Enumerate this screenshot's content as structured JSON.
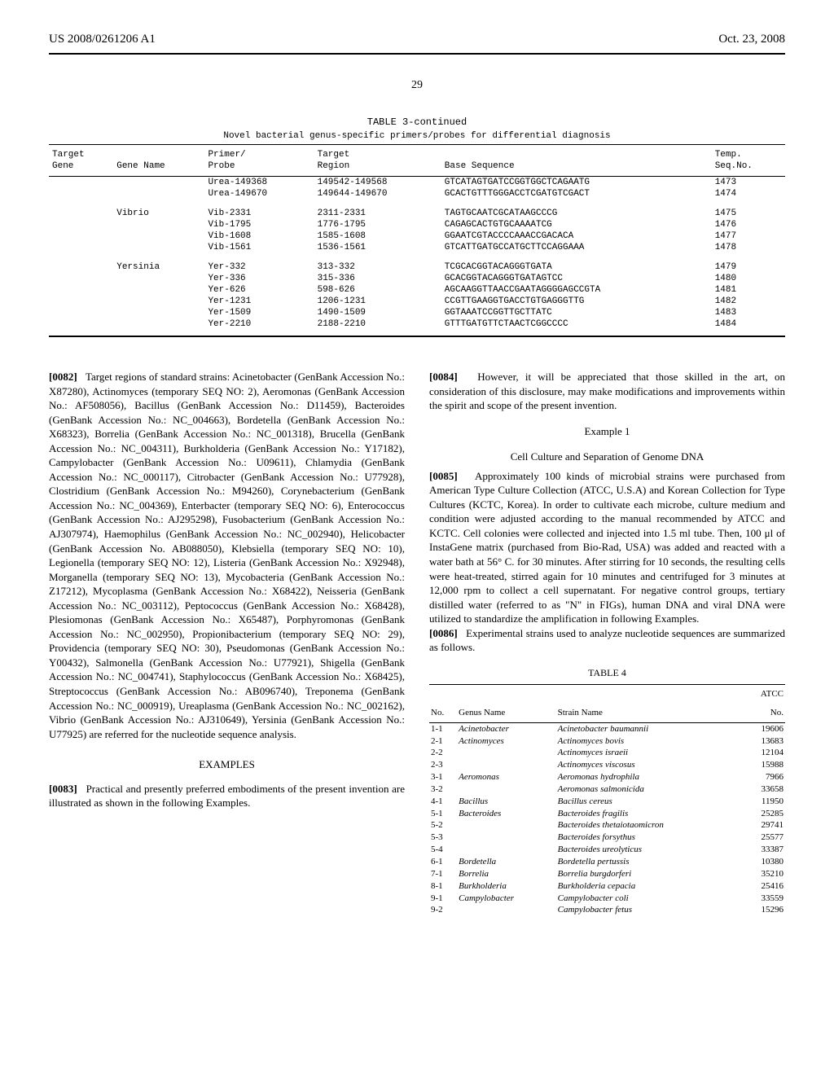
{
  "header": {
    "left": "US 2008/0261206 A1",
    "right": "Oct. 23, 2008"
  },
  "page_number": "29",
  "table3": {
    "continued": "TABLE 3-continued",
    "subtitle": "Novel bacterial genus-specific primers/probes for differential diagnosis",
    "columns": {
      "c1a": "Target",
      "c1b": "Gene",
      "c2a": "",
      "c2b": "Gene Name",
      "c3a": "Primer/",
      "c3b": "Probe",
      "c4a": "Target",
      "c4b": "Region",
      "c5a": "",
      "c5b": "Base Sequence",
      "c6a": "Temp.",
      "c6b": "Seq.No."
    },
    "rows": [
      {
        "gene": "",
        "name": "",
        "primer": "Urea-149368",
        "region": "149542-149568",
        "seq": "GTCATAGTGATCCGGTGGCTCAGAATG",
        "no": "1473"
      },
      {
        "gene": "",
        "name": "",
        "primer": "Urea-149670",
        "region": "149644-149670",
        "seq": "GCACTGTTTGGGACCTCGATGTCGACT",
        "no": "1474"
      },
      {
        "gene": "",
        "name": "Vibrio",
        "primer": "Vib-2331",
        "region": "2311-2331",
        "seq": "TAGTGCAATCGCATAAGCCCG",
        "no": "1475",
        "spacer": true
      },
      {
        "gene": "",
        "name": "",
        "primer": "Vib-1795",
        "region": "1776-1795",
        "seq": "CAGAGCACTGTGCAAAATCG",
        "no": "1476"
      },
      {
        "gene": "",
        "name": "",
        "primer": "Vib-1608",
        "region": "1585-1608",
        "seq": "GGAATCGTACCCCAAACCGACACA",
        "no": "1477"
      },
      {
        "gene": "",
        "name": "",
        "primer": "Vib-1561",
        "region": "1536-1561",
        "seq": "GTCATTGATGCCATGCTTCCAGGAAA",
        "no": "1478"
      },
      {
        "gene": "",
        "name": "Yersinia",
        "primer": "Yer-332",
        "region": "313-332",
        "seq": "TCGCACGGTACAGGGTGATA",
        "no": "1479",
        "spacer": true
      },
      {
        "gene": "",
        "name": "",
        "primer": "Yer-336",
        "region": "315-336",
        "seq": "GCACGGTACAGGGTGATAGTCC",
        "no": "1480"
      },
      {
        "gene": "",
        "name": "",
        "primer": "Yer-626",
        "region": "598-626",
        "seq": "AGCAAGGTTAACCGAATAGGGGAGCCGTA",
        "no": "1481"
      },
      {
        "gene": "",
        "name": "",
        "primer": "Yer-1231",
        "region": "1206-1231",
        "seq": "CCGTTGAAGGTGACCTGTGAGGGTTG",
        "no": "1482"
      },
      {
        "gene": "",
        "name": "",
        "primer": "Yer-1509",
        "region": "1490-1509",
        "seq": "GGTAAATCCGGTTGCTTATC",
        "no": "1483"
      },
      {
        "gene": "",
        "name": "",
        "primer": "Yer-2210",
        "region": "2188-2210",
        "seq": "GTTTGATGTTCTAACTCGGCCCC",
        "no": "1484",
        "last": true
      }
    ]
  },
  "left_column": {
    "p0082_num": "[0082]",
    "p0082": "Target regions of standard strains: Acinetobacter (GenBank Accession No.: X87280), Actinomyces (temporary SEQ NO: 2), Aeromonas (GenBank Accession No.: AF508056), Bacillus (GenBank Accession No.: D11459), Bacteroides (GenBank Accession No.: NC_004663), Bordetella (GenBank Accession No.: X68323), Borrelia (GenBank Accession No.: NC_001318), Brucella (GenBank Accession No.: NC_004311), Burkholderia (GenBank Accession No.: Y17182), Campylobacter (GenBank Accession No.: U09611), Chlamydia (GenBank Accession No.: NC_000117), Citrobacter (GenBank Accession No.: U77928), Clostridium (GenBank Accession No.: M94260), Corynebacterium (GenBank Accession No.: NC_004369), Enterbacter (temporary SEQ NO: 6), Enterococcus (GenBank Accession No.: AJ295298), Fusobacterium (GenBank Accession No.: AJ307974), Haemophilus (GenBank Accession No.: NC_002940), Helicobacter (GenBank Accession No. AB088050), Klebsiella (temporary SEQ NO: 10), Legionella (temporary SEQ NO: 12), Listeria (GenBank Accession No.: X92948), Morganella (temporary SEQ NO: 13), Mycobacteria (GenBank Accession No.: Z17212), Mycoplasma (GenBank Accession No.: X68422), Neisseria (GenBank Accession No.: NC_003112), Peptococcus (GenBank Accession No.: X68428), Plesiomonas (GenBank Accession No.: X65487), Porphyromonas (GenBank Accession No.: NC_002950), Propionibacterium (temporary SEQ NO: 29), Providencia (temporary SEQ NO: 30), Pseudomonas (GenBank Accession No.: Y00432), Salmonella (GenBank Accession No.: U77921), Shigella (GenBank Accession No.: NC_004741), Staphylococcus (GenBank Accession No.: X68425), Streptococcus (GenBank Accession No.: AB096740), Treponema (GenBank Accession No.: NC_000919), Ureaplasma (GenBank Accession No.: NC_002162), Vibrio (GenBank Accession No.: AJ310649), Yersinia (GenBank Accession No.: U77925) are referred for the nucleotide sequence analysis.",
    "examples_head": "EXAMPLES",
    "p0083_num": "[0083]",
    "p0083": "Practical and presently preferred embodiments of the present invention are illustrated as shown in the following Examples."
  },
  "right_column": {
    "p0084_num": "[0084]",
    "p0084": "However, it will be appreciated that those skilled in the art, on consideration of this disclosure, may make modifications and improvements within the spirit and scope of the present invention.",
    "example1_head": "Example 1",
    "example1_sub": "Cell Culture and Separation of Genome DNA",
    "p0085_num": "[0085]",
    "p0085": "Approximately 100 kinds of microbial strains were purchased from American Type Culture Collection (ATCC, U.S.A) and Korean Collection for Type Cultures (KCTC, Korea). In order to cultivate each microbe, culture medium and condition were adjusted according to the manual recommended by ATCC and KCTC. Cell colonies were collected and injected into 1.5 ml tube. Then, 100 μl of InstaGene matrix (purchased from Bio-Rad, USA) was added and reacted with a water bath at 56° C. for 30 minutes. After stirring for 10 seconds, the resulting cells were heat-treated, stirred again for 10 minutes and centrifuged for 3 minutes at 12,000 rpm to collect a cell supernatant. For negative control groups, tertiary distilled water (referred to as \"N\" in FIGs), human DNA and viral DNA were utilized to standardize the amplification in following Examples.",
    "p0086_num": "[0086]",
    "p0086": "Experimental strains used to analyze nucleotide sequences are summarized as follows."
  },
  "table4": {
    "title": "TABLE 4",
    "columns": {
      "c1": "No.",
      "c2": "Genus Name",
      "c3": "Strain Name",
      "c4a": "ATCC",
      "c4b": "No."
    },
    "rows": [
      {
        "no": "1-1",
        "genus": "Acinetobacter",
        "strain": "Acinetobacter baumannii",
        "atcc": "19606"
      },
      {
        "no": "2-1",
        "genus": "Actinomyces",
        "strain": "Actinomyces bovis",
        "atcc": "13683"
      },
      {
        "no": "2-2",
        "genus": "",
        "strain": "Actinomyces israeii",
        "atcc": "12104"
      },
      {
        "no": "2-3",
        "genus": "",
        "strain": "Actinomyces viscosus",
        "atcc": "15988"
      },
      {
        "no": "3-1",
        "genus": "Aeromonas",
        "strain": "Aeromonas hydrophila",
        "atcc": "7966"
      },
      {
        "no": "3-2",
        "genus": "",
        "strain": "Aeromonas salmonicida",
        "atcc": "33658"
      },
      {
        "no": "4-1",
        "genus": "Bacillus",
        "strain": "Bacillus cereus",
        "atcc": "11950"
      },
      {
        "no": "5-1",
        "genus": "Bacteroides",
        "strain": "Bacteroides fragilis",
        "atcc": "25285"
      },
      {
        "no": "5-2",
        "genus": "",
        "strain": "Bacteroides thetaiotaomicron",
        "atcc": "29741"
      },
      {
        "no": "5-3",
        "genus": "",
        "strain": "Bacteroides forsythus",
        "atcc": "25577"
      },
      {
        "no": "5-4",
        "genus": "",
        "strain": "Bacteroides ureolyticus",
        "atcc": "33387"
      },
      {
        "no": "6-1",
        "genus": "Bordetella",
        "strain": "Bordetella pertussis",
        "atcc": "10380"
      },
      {
        "no": "7-1",
        "genus": "Borrelia",
        "strain": "Borrelia burgdorferi",
        "atcc": "35210"
      },
      {
        "no": "8-1",
        "genus": "Burkholderia",
        "strain": "Burkholderia cepacia",
        "atcc": "25416"
      },
      {
        "no": "9-1",
        "genus": "Campylobacter",
        "strain": "Campylobacter coli",
        "atcc": "33559"
      },
      {
        "no": "9-2",
        "genus": "",
        "strain": "Campylobacter fetus",
        "atcc": "15296"
      }
    ]
  }
}
